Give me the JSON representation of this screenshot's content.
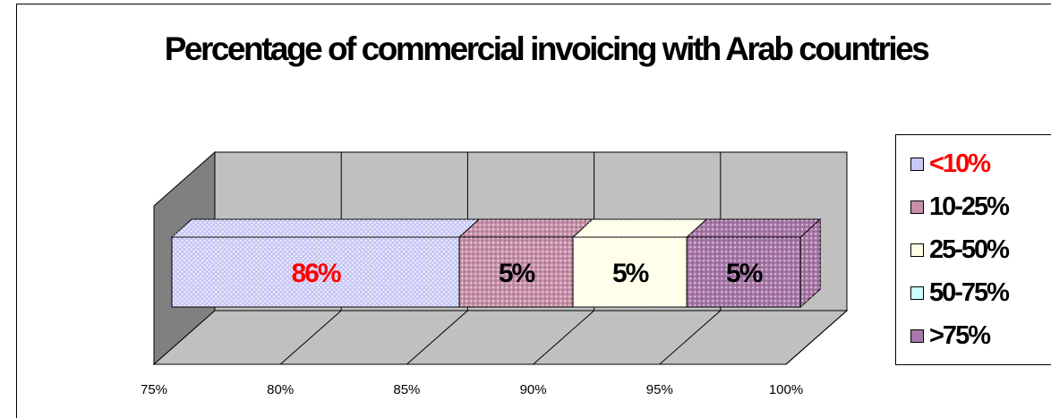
{
  "chart_data": {
    "type": "bar",
    "title": "Percentage of commercial invoicing  with Arab countries",
    "orientation": "horizontal-stacked-3d",
    "xlim": [
      75,
      100
    ],
    "xticks": [
      "75%",
      "80%",
      "85%",
      "90%",
      "95%",
      "100%"
    ],
    "grid": true,
    "legend_position": "right",
    "series": [
      {
        "name": "<10%",
        "value": 86,
        "label": "86%",
        "color": "#c8c8f4",
        "label_color": "#ff0000",
        "legend_color": "#ff0000"
      },
      {
        "name": "10-25%",
        "value": 5,
        "label": "5%",
        "color": "#c890a8",
        "label_color": "#000000",
        "legend_color": "#000000"
      },
      {
        "name": "25-50%",
        "value": 5,
        "label": "5%",
        "color": "#ffffe6",
        "label_color": "#000000",
        "legend_color": "#000000"
      },
      {
        "name": "50-75%",
        "value": 0,
        "label": "",
        "color": "#ccffff",
        "label_color": "#000000",
        "legend_color": "#000000"
      },
      {
        "name": ">75%",
        "value": 5,
        "label": "5%",
        "color": "#a878a8",
        "label_color": "#000000",
        "legend_color": "#000000"
      }
    ],
    "colors": {
      "wall": "#c0c0c0",
      "side_wall": "#808080",
      "floor": "#c0c0c0"
    }
  }
}
